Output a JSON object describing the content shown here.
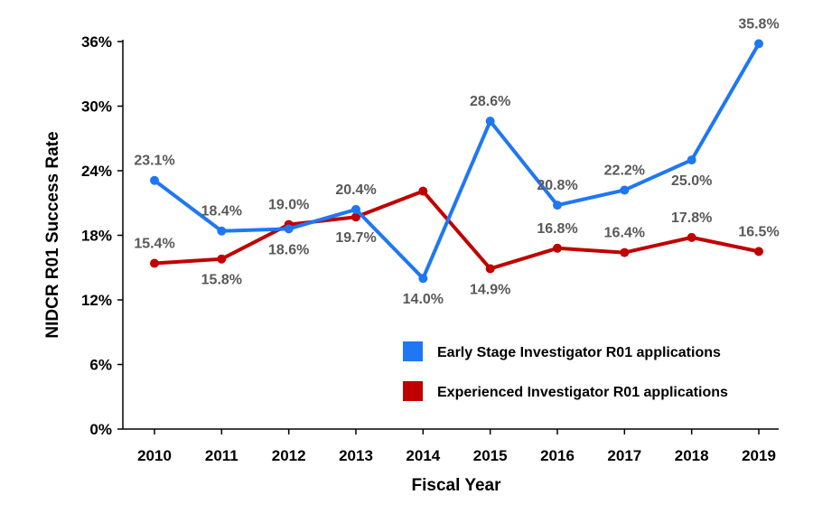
{
  "chart_data": {
    "type": "line",
    "title": "",
    "xlabel": "Fiscal Year",
    "ylabel": "NIDCR R01 Success Rate",
    "ylim": [
      0,
      36
    ],
    "yticks": [
      0,
      6,
      12,
      18,
      24,
      30,
      36
    ],
    "ytick_labels": [
      "0%",
      "6%",
      "12%",
      "18%",
      "24%",
      "30%",
      "36%"
    ],
    "categories": [
      "2010",
      "2011",
      "2012",
      "2013",
      "2014",
      "2015",
      "2016",
      "2017",
      "2018",
      "2019"
    ],
    "grid": false,
    "legend_position": "bottom-right",
    "series": [
      {
        "name": "Early Stage Investigator R01 applications",
        "color": "#1F77F4",
        "values": [
          23.1,
          18.4,
          18.6,
          20.4,
          14.0,
          28.6,
          20.8,
          22.2,
          25.0,
          35.8
        ],
        "labels": [
          "23.1%",
          "18.4%",
          "18.6%",
          "20.4%",
          "14.0%",
          "28.6%",
          "20.8%",
          "22.2%",
          "25.0%",
          "35.8%"
        ],
        "label_side": [
          "above",
          "above",
          "below",
          "above",
          "below",
          "above",
          "above",
          "above",
          "below",
          "above"
        ]
      },
      {
        "name": "Experienced Investigator R01 applications",
        "color": "#C00000",
        "values": [
          15.4,
          15.8,
          19.0,
          19.7,
          22.1,
          14.9,
          16.8,
          16.4,
          17.8,
          16.5
        ],
        "labels": [
          "15.4%",
          "15.8%",
          "19.0%",
          "19.7%",
          "",
          "14.9%",
          "16.8%",
          "16.4%",
          "17.8%",
          "16.5%"
        ],
        "label_side": [
          "above",
          "below",
          "above",
          "below",
          "above",
          "below",
          "above",
          "above",
          "above",
          "above"
        ]
      }
    ]
  }
}
